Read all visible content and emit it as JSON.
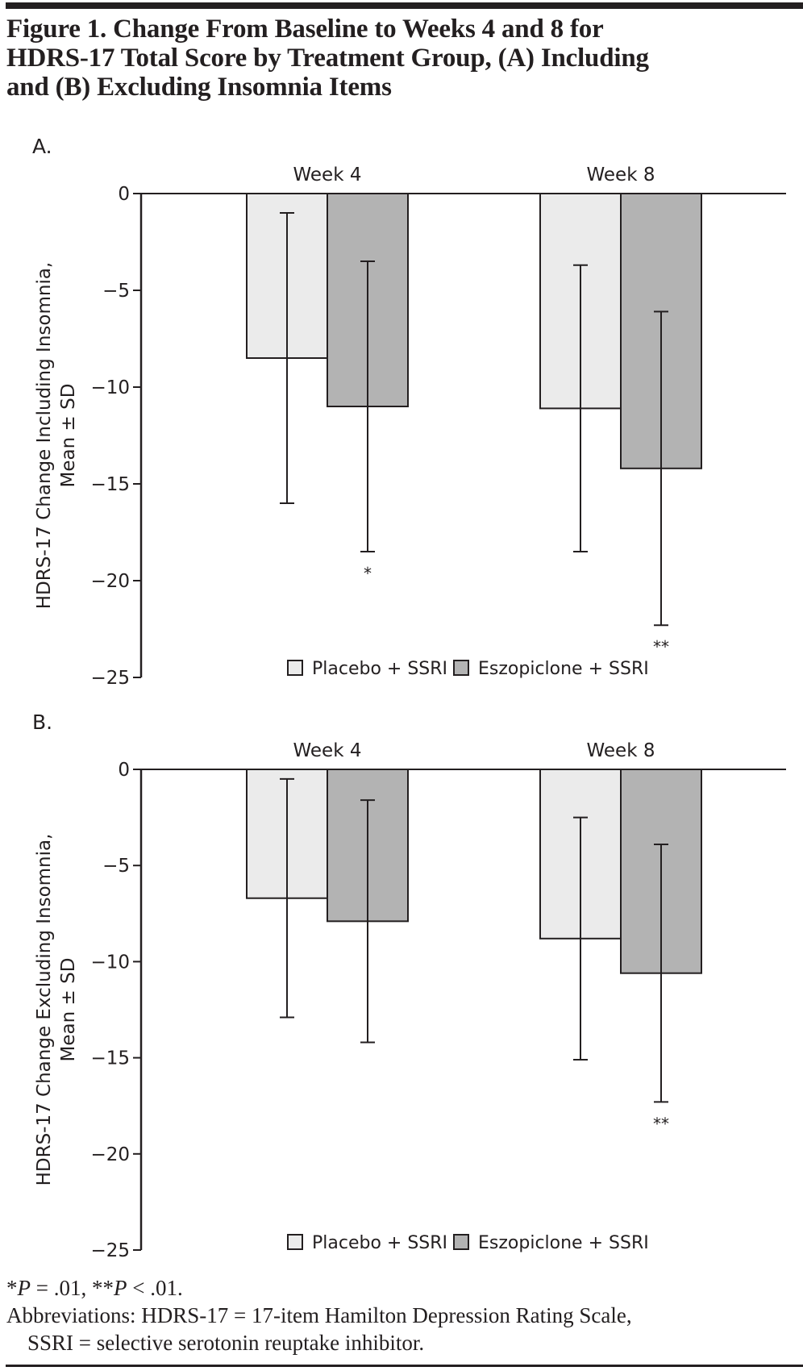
{
  "figure": {
    "title_lines": [
      "Figure 1. Change From Baseline to Weeks 4 and 8 for",
      "HDRS-17 Total Score by Treatment Group, (A) Including",
      "and (B) Excluding Insomnia Items"
    ],
    "footnote_significance": {
      "part1_star": "*",
      "part1_p": "P",
      "part1_rest": " = .01, ",
      "part2_star": "**",
      "part2_p": "P",
      "part2_rest": " < .01."
    },
    "footnote_abbrev_line1": "Abbreviations: HDRS-17 = 17-item Hamilton Depression Rating Scale,",
    "footnote_abbrev_line2": "SSRI = selective serotonin reuptake inhibitor."
  },
  "colors": {
    "placebo": "#ebebeb",
    "eszopiclone": "#b3b3b3",
    "stroke": "#231f20"
  },
  "chart_data": [
    {
      "type": "bar",
      "panel_label": "A.",
      "title": "",
      "xlabel": "",
      "ylabel_lines": [
        "HDRS-17 Change Including Insomnia,",
        "Mean ± SD"
      ],
      "categories": [
        "Week 4",
        "Week 8"
      ],
      "ylim": [
        -25,
        0
      ],
      "yticks": [
        0,
        -5,
        -10,
        -15,
        -20,
        -25
      ],
      "ytick_labels": [
        "0",
        "−5",
        "−10",
        "−15",
        "−20",
        "−25"
      ],
      "grid": false,
      "legend_position": "bottom-center",
      "series": [
        {
          "name": "Placebo + SSRI",
          "values": [
            -8.5,
            -11.1
          ],
          "sd": [
            7.5,
            7.4
          ],
          "annotations": [
            "",
            ""
          ]
        },
        {
          "name": "Eszopiclone + SSRI",
          "values": [
            -11.0,
            -14.2
          ],
          "sd": [
            7.5,
            8.1
          ],
          "annotations": [
            "*",
            "**"
          ]
        }
      ]
    },
    {
      "type": "bar",
      "panel_label": "B.",
      "title": "",
      "xlabel": "",
      "ylabel_lines": [
        "HDRS-17 Change Excluding Insomnia,",
        "Mean ± SD"
      ],
      "categories": [
        "Week 4",
        "Week 8"
      ],
      "ylim": [
        -25,
        0
      ],
      "yticks": [
        0,
        -5,
        -10,
        -15,
        -20,
        -25
      ],
      "ytick_labels": [
        "0",
        "−5",
        "−10",
        "−15",
        "−20",
        "−25"
      ],
      "grid": false,
      "legend_position": "bottom-center",
      "series": [
        {
          "name": "Placebo + SSRI",
          "values": [
            -6.7,
            -8.8
          ],
          "sd": [
            6.2,
            6.3
          ],
          "annotations": [
            "",
            ""
          ]
        },
        {
          "name": "Eszopiclone + SSRI",
          "values": [
            -7.9,
            -10.6
          ],
          "sd": [
            6.3,
            6.7
          ],
          "annotations": [
            "",
            "**"
          ]
        }
      ]
    }
  ]
}
